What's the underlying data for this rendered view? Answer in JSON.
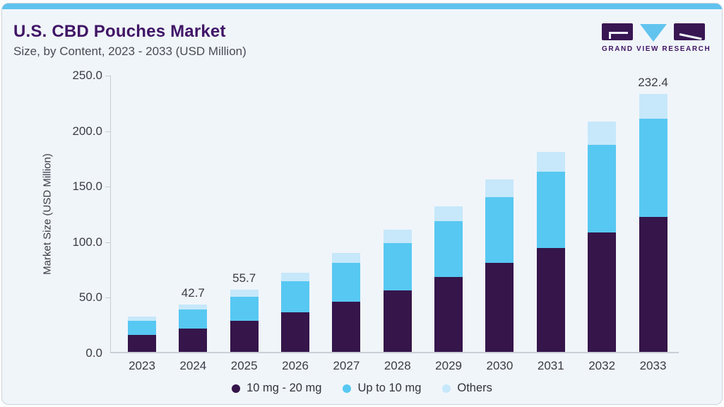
{
  "logo": {
    "text": "GRAND VIEW RESEARCH"
  },
  "colors": {
    "top_strip": "#60C2EE",
    "card_background": "#F0F5FA",
    "title_purple": "#401566",
    "text_gray": "#3C3C46",
    "bar_dark_purple": "#35154A",
    "bar_blue": "#57C8F2",
    "bar_light_blue": "#C6E8FA",
    "logo_dark": "#381652",
    "logo_triangle": "#62C4EE"
  },
  "chart_data": {
    "type": "bar",
    "stacked": true,
    "title": "U.S. CBD Pouches Market",
    "subtitle": "Size, by Content, 2023 - 2033 (USD Million)",
    "ylabel": "Market Size (USD Million)",
    "xlabel": "",
    "ylim": [
      0,
      250
    ],
    "yticks": [
      0,
      50,
      100,
      150,
      200,
      250
    ],
    "ytick_labels": [
      "0.0",
      "50.0",
      "100.0",
      "150.0",
      "200.0",
      "250.0"
    ],
    "grid": false,
    "legend_position": "bottom",
    "categories": [
      "2023",
      "2024",
      "2025",
      "2026",
      "2027",
      "2028",
      "2029",
      "2030",
      "2031",
      "2032",
      "2033"
    ],
    "series": [
      {
        "name": "10 mg - 20 mg",
        "color": "#35154A",
        "values": [
          15.4,
          21.3,
          28.0,
          35.4,
          45.4,
          55.4,
          67.3,
          79.9,
          93.3,
          107.4,
          121.2
        ]
      },
      {
        "name": "Up to 10 mg",
        "color": "#57C8F2",
        "values": [
          12.8,
          16.6,
          21.8,
          28.3,
          34.6,
          42.7,
          50.6,
          59.2,
          68.9,
          79.0,
          88.5
        ]
      },
      {
        "name": "Others",
        "color": "#C6E8FA",
        "values": [
          3.3,
          4.8,
          5.9,
          7.8,
          9.2,
          11.9,
          13.1,
          16.3,
          18.1,
          21.0,
          22.7
        ]
      }
    ],
    "totals": [
      31.5,
      42.7,
      55.7,
      71.5,
      89.2,
      110.0,
      131.0,
      155.4,
      180.3,
      207.4,
      232.4
    ],
    "visible_total_labels": [
      "",
      "42.7",
      "55.7",
      "",
      "",
      "",
      "",
      "",
      "",
      "",
      "232.4"
    ]
  }
}
